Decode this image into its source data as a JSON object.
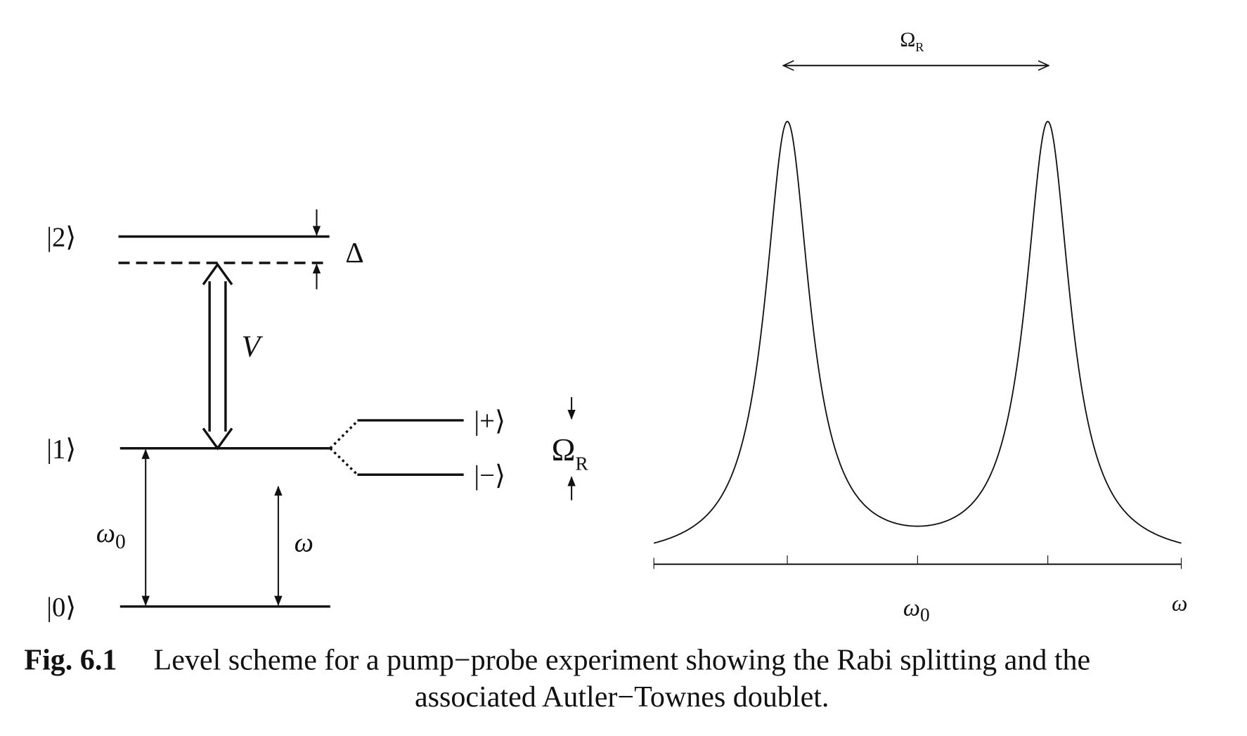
{
  "level_scheme": {
    "levels": {
      "state_2": "|2⟩",
      "state_1": "|1⟩",
      "state_0": "|0⟩",
      "state_plus": "|+⟩",
      "state_minus": "|−⟩"
    },
    "detuning": "Δ",
    "coupling": "V",
    "transition_resonant": {
      "symbol": "ω",
      "subscript": "0"
    },
    "transition_probe": "ω",
    "splitting": {
      "symbol": "Ω",
      "subscript": "R"
    }
  },
  "spectrum": {
    "splitting": {
      "symbol": "Ω",
      "subscript": "R"
    },
    "center": {
      "symbol": "ω",
      "subscript": "0"
    },
    "x_label": "ω"
  },
  "caption": {
    "label": "Fig. 6.1",
    "line_1": "Level scheme for a pump−probe experiment showing the Rabi splitting and the",
    "line_2": "associated Autler−Townes doublet."
  }
}
